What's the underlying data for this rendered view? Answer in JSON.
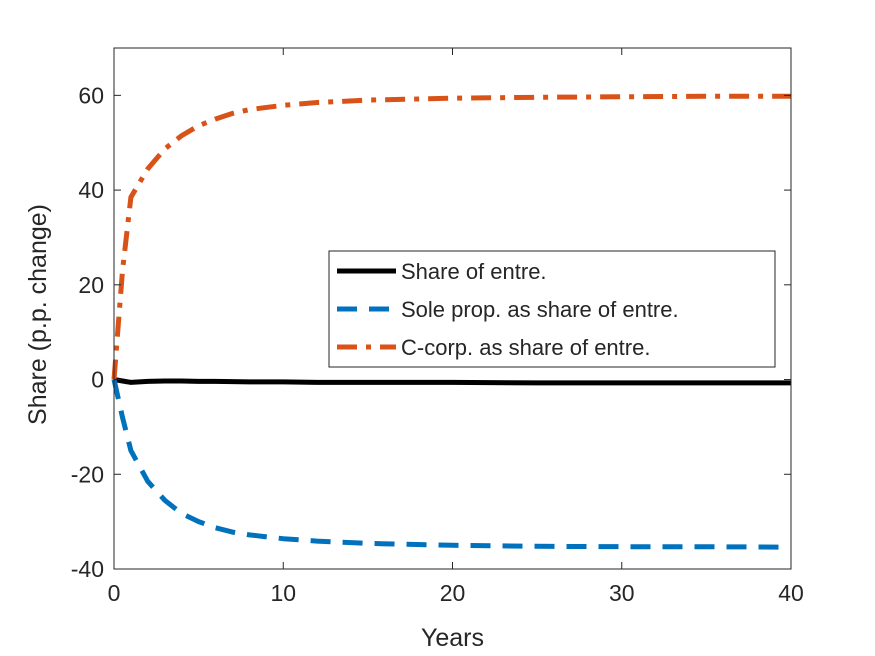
{
  "chart_data": {
    "type": "line",
    "title": "",
    "xlabel": "Years",
    "ylabel": "Share (p.p. change)",
    "xlim": [
      0,
      40
    ],
    "ylim": [
      -40,
      70
    ],
    "xticks": [
      "0",
      "10",
      "20",
      "30",
      "40"
    ],
    "yticks": [
      "-40",
      "-20",
      "0",
      "20",
      "40",
      "60"
    ],
    "grid": false,
    "legend_position": "center-right",
    "series": [
      {
        "name": "Share of entre.",
        "color": "#000000",
        "style": "solid",
        "x": [
          0,
          1,
          2,
          3,
          4,
          5,
          6,
          8,
          10,
          12,
          15,
          20,
          25,
          30,
          35,
          40
        ],
        "y": [
          0,
          -0.6,
          -0.4,
          -0.3,
          -0.3,
          -0.4,
          -0.4,
          -0.5,
          -0.5,
          -0.6,
          -0.6,
          -0.6,
          -0.7,
          -0.7,
          -0.7,
          -0.7
        ]
      },
      {
        "name": "Sole prop. as share of entre.",
        "color": "#0072bd",
        "style": "dashed",
        "x": [
          0,
          0.5,
          1,
          2,
          3,
          4,
          5,
          6,
          7,
          8,
          10,
          12,
          15,
          20,
          25,
          30,
          35,
          40
        ],
        "y": [
          0,
          -8,
          -15,
          -21.5,
          -25.5,
          -28.3,
          -30,
          -31.3,
          -32.2,
          -32.8,
          -33.6,
          -34.1,
          -34.6,
          -35,
          -35.2,
          -35.3,
          -35.3,
          -35.4
        ]
      },
      {
        "name": "C-corp. as share of entre.",
        "color": "#d95319",
        "style": "dashdot",
        "x": [
          0,
          0.5,
          1,
          2,
          3,
          4,
          5,
          6,
          7,
          8,
          10,
          12,
          15,
          20,
          25,
          30,
          35,
          40
        ],
        "y": [
          0,
          23,
          38.5,
          44.5,
          48.7,
          51.5,
          53.6,
          55,
          56.2,
          57,
          57.9,
          58.5,
          59,
          59.4,
          59.6,
          59.7,
          59.8,
          59.8
        ]
      }
    ]
  }
}
